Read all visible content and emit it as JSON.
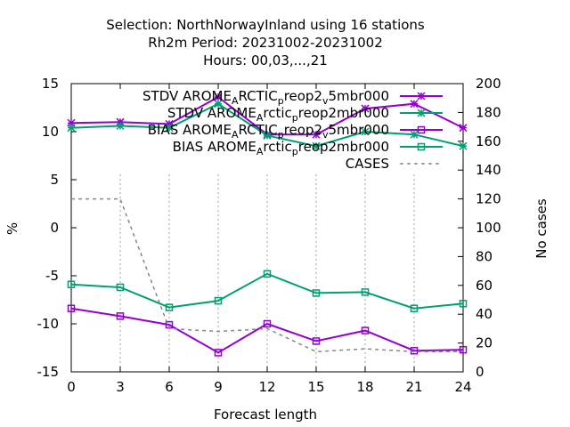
{
  "chart_data": {
    "type": "line",
    "title_lines": [
      "Selection: NorthNorwayInland using    16 stations",
      "Rh2m   Period: 20231002-20231002",
      "Hours:  00,03,...,21"
    ],
    "xlabel": "Forecast length",
    "ylabel": "%",
    "y2label": "No cases",
    "x": [
      0,
      3,
      6,
      9,
      12,
      15,
      18,
      21,
      24
    ],
    "xlim": [
      0,
      24
    ],
    "ylim": [
      -15,
      15
    ],
    "y2lim": [
      0,
      200
    ],
    "x_ticks": [
      "0",
      "3",
      "6",
      "9",
      "12",
      "15",
      "18",
      "21",
      "24"
    ],
    "y_ticks": [
      "-15",
      "-10",
      "-5",
      "0",
      "5",
      "10",
      "15"
    ],
    "y2_ticks": [
      "0",
      "20",
      "40",
      "60",
      "80",
      "100",
      "120",
      "140",
      "160",
      "180",
      "200"
    ],
    "legend_position": "top-right",
    "series": [
      {
        "name": "STDV AROME_Arctic_preop2_v5mbr000",
        "legend_parts": [
          [
            "STDV AROME",
            ""
          ],
          [
            "A",
            "sub"
          ],
          [
            "RCTIC",
            ""
          ],
          [
            "p",
            "sub"
          ],
          [
            "reop2",
            ""
          ],
          [
            "v",
            "sub"
          ],
          [
            "5mbr000",
            ""
          ]
        ],
        "axis": "y1",
        "color": "#9400d3",
        "marker": "star",
        "values": [
          10.9,
          11.0,
          10.8,
          13.6,
          9.7,
          9.7,
          12.4,
          12.9,
          10.4
        ]
      },
      {
        "name": "STDV AROME_Arctic_preop2mbr000",
        "legend_parts": [
          [
            "STDV AROME",
            ""
          ],
          [
            "A",
            "sub"
          ],
          [
            "rctic",
            ""
          ],
          [
            "p",
            "sub"
          ],
          [
            "reop2mbr000",
            ""
          ]
        ],
        "axis": "y1",
        "color": "#009e73",
        "marker": "star",
        "values": [
          10.4,
          10.6,
          10.4,
          12.9,
          9.6,
          8.5,
          10.0,
          9.7,
          8.5
        ]
      },
      {
        "name": "BIAS AROME_ARCTIC_preop2_v5mbr000",
        "legend_parts": [
          [
            "BIAS AROME",
            ""
          ],
          [
            "A",
            "sub"
          ],
          [
            "RCTIC",
            ""
          ],
          [
            "p",
            "sub"
          ],
          [
            "reop2",
            ""
          ],
          [
            "v",
            "sub"
          ],
          [
            "5mbr000",
            ""
          ]
        ],
        "axis": "y1",
        "color": "#9400d3",
        "marker": "square",
        "values": [
          -8.4,
          -9.2,
          -10.1,
          -13.0,
          -10.0,
          -11.8,
          -10.7,
          -12.8,
          -12.7
        ]
      },
      {
        "name": "BIAS AROME_Arctic_preop2mbr000",
        "legend_parts": [
          [
            "BIAS AROME",
            ""
          ],
          [
            "A",
            "sub"
          ],
          [
            "rctic",
            ""
          ],
          [
            "p",
            "sub"
          ],
          [
            "reop2mbr000",
            ""
          ]
        ],
        "axis": "y1",
        "color": "#009e73",
        "marker": "square",
        "values": [
          -5.9,
          -6.2,
          -8.3,
          -7.6,
          -4.8,
          -6.8,
          -6.7,
          -8.4,
          -7.9
        ]
      },
      {
        "name": "CASES",
        "legend_parts": [
          [
            "CASES",
            ""
          ]
        ],
        "axis": "y2",
        "color": "#888888",
        "marker": "none",
        "dashed": true,
        "values": [
          120,
          120,
          30,
          28,
          30,
          14,
          16,
          14,
          14
        ]
      }
    ]
  }
}
